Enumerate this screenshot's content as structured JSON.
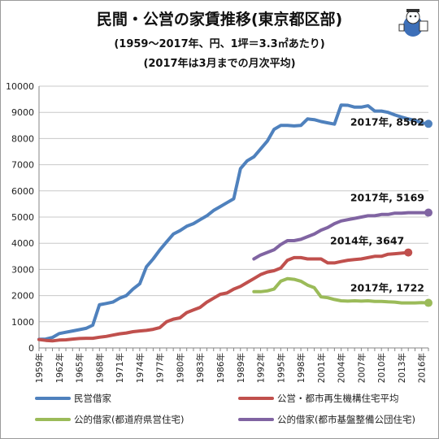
{
  "title": "民間・公営の家賃推移(東京都区部)",
  "subtitle1": "(1959～2017年、円、1坪＝3.3㎡あたり)",
  "subtitle2": "(2017年は3月までの月次平均)",
  "chart_data": {
    "type": "line",
    "xlim": [
      1959,
      2017
    ],
    "ylim": [
      0,
      10000
    ],
    "yticks": [
      0,
      1000,
      2000,
      3000,
      4000,
      5000,
      6000,
      7000,
      8000,
      9000,
      10000
    ],
    "xtick_labels": [
      "1959年",
      "1962年",
      "1965年",
      "1968年",
      "1971年",
      "1974年",
      "1977年",
      "1980年",
      "1983年",
      "1986年",
      "1989年",
      "1992年",
      "1995年",
      "1998年",
      "2001年",
      "2004年",
      "2007年",
      "2010年",
      "2013年",
      "2016年"
    ],
    "grid": "horizontal",
    "legend_position": "bottom",
    "series": [
      {
        "name": "民営借家",
        "color": "#4f81bd",
        "x": [
          1959,
          1960,
          1961,
          1962,
          1963,
          1964,
          1965,
          1966,
          1967,
          1968,
          1969,
          1970,
          1971,
          1972,
          1973,
          1974,
          1975,
          1976,
          1977,
          1978,
          1979,
          1980,
          1981,
          1982,
          1983,
          1984,
          1985,
          1986,
          1987,
          1988,
          1989,
          1990,
          1991,
          1992,
          1993,
          1994,
          1995,
          1996,
          1997,
          1998,
          1999,
          2000,
          2001,
          2002,
          2003,
          2004,
          2005,
          2006,
          2007,
          2008,
          2009,
          2010,
          2011,
          2012,
          2013,
          2014,
          2015,
          2016,
          2017
        ],
        "values": [
          330,
          340,
          400,
          550,
          600,
          650,
          700,
          750,
          870,
          1650,
          1700,
          1750,
          1900,
          2000,
          2250,
          2450,
          3100,
          3400,
          3750,
          4050,
          4350,
          4480,
          4650,
          4750,
          4900,
          5050,
          5250,
          5400,
          5550,
          5700,
          6850,
          7150,
          7300,
          7600,
          7900,
          8350,
          8500,
          8500,
          8480,
          8500,
          8750,
          8720,
          8650,
          8600,
          8550,
          9280,
          9270,
          9200,
          9200,
          9250,
          9050,
          9050,
          9000,
          8900,
          8820,
          8750,
          8700,
          8600,
          8562
        ]
      },
      {
        "name": "公営・都市再生機構住宅平均",
        "color": "#c0504d",
        "x": [
          1959,
          1960,
          1961,
          1962,
          1963,
          1964,
          1965,
          1966,
          1967,
          1968,
          1969,
          1970,
          1971,
          1972,
          1973,
          1974,
          1975,
          1976,
          1977,
          1978,
          1979,
          1980,
          1981,
          1982,
          1983,
          1984,
          1985,
          1986,
          1987,
          1988,
          1989,
          1990,
          1991,
          1992,
          1993,
          1994,
          1995,
          1996,
          1997,
          1998,
          1999,
          2000,
          2001,
          2002,
          2003,
          2004,
          2005,
          2006,
          2007,
          2008,
          2009,
          2010,
          2011,
          2012,
          2013,
          2014
        ],
        "values": [
          320,
          290,
          270,
          300,
          310,
          340,
          360,
          370,
          370,
          410,
          440,
          490,
          540,
          570,
          620,
          650,
          670,
          710,
          780,
          1000,
          1100,
          1150,
          1350,
          1450,
          1550,
          1750,
          1900,
          2050,
          2100,
          2250,
          2350,
          2500,
          2650,
          2800,
          2900,
          2950,
          3050,
          3350,
          3450,
          3450,
          3400,
          3400,
          3400,
          3250,
          3250,
          3300,
          3350,
          3380,
          3400,
          3450,
          3500,
          3500,
          3580,
          3600,
          3620,
          3647
        ]
      },
      {
        "name": "公的借家(都道府県営住宅)",
        "color": "#9bbb59",
        "x": [
          1991,
          1992,
          1993,
          1994,
          1995,
          1996,
          1997,
          1998,
          1999,
          2000,
          2001,
          2002,
          2003,
          2004,
          2005,
          2006,
          2007,
          2008,
          2009,
          2010,
          2011,
          2012,
          2013,
          2014,
          2015,
          2016,
          2017
        ],
        "values": [
          2150,
          2150,
          2180,
          2250,
          2550,
          2650,
          2620,
          2550,
          2400,
          2300,
          1950,
          1920,
          1850,
          1800,
          1790,
          1800,
          1790,
          1800,
          1780,
          1780,
          1760,
          1750,
          1720,
          1720,
          1720,
          1730,
          1722
        ]
      },
      {
        "name": "公的借家(都市基盤整備公団住宅)",
        "color": "#8064a2",
        "x": [
          1991,
          1992,
          1993,
          1994,
          1995,
          1996,
          1997,
          1998,
          1999,
          2000,
          2001,
          2002,
          2003,
          2004,
          2005,
          2006,
          2007,
          2008,
          2009,
          2010,
          2011,
          2012,
          2013,
          2014,
          2015,
          2016,
          2017
        ],
        "values": [
          3400,
          3550,
          3650,
          3750,
          3950,
          4100,
          4100,
          4150,
          4250,
          4350,
          4500,
          4600,
          4750,
          4850,
          4900,
          4950,
          5000,
          5050,
          5050,
          5100,
          5100,
          5150,
          5150,
          5169,
          5169,
          5169,
          5169
        ]
      }
    ],
    "annotations": [
      {
        "text": "2017年, 8562",
        "series": 0
      },
      {
        "text": "2014年, 3647",
        "series": 1
      },
      {
        "text": "2017年, 1722",
        "series": 2
      },
      {
        "text": "2017年, 5169",
        "series": 3
      }
    ]
  }
}
